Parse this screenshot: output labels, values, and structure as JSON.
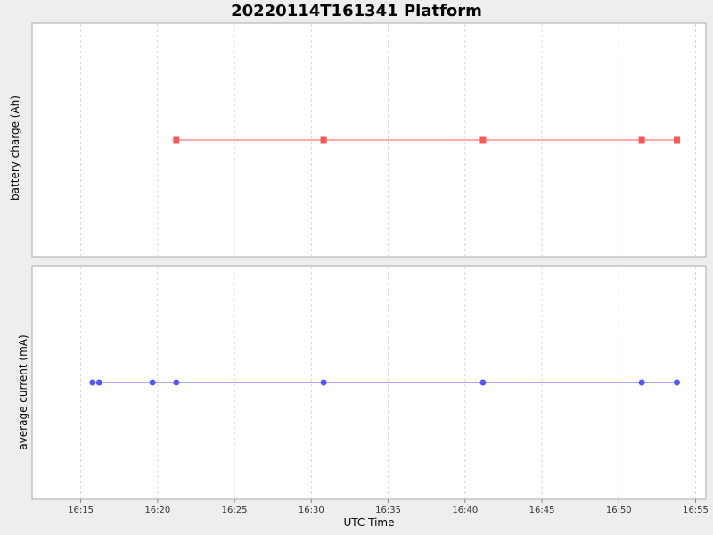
{
  "chart_data": {
    "type": "line",
    "title": "20220114T161341 Platform",
    "xlabel": "UTC Time",
    "x_ticks": [
      "16:15",
      "16:20",
      "16:25",
      "16:30",
      "16:35",
      "16:40",
      "16:45",
      "16:50",
      "16:55"
    ],
    "xlim": [
      "16:11:50",
      "16:55:40"
    ],
    "grid": true,
    "subplots": [
      {
        "ylabel": "battery charge (Ah)",
        "series": [
          {
            "color": "#ff5555",
            "marker": "square",
            "x": [
              "16:21:13",
              "16:30:48",
              "16:41:10",
              "16:51:30",
              "16:53:47"
            ],
            "y": [
              0,
              0,
              0,
              0,
              0
            ]
          }
        ]
      },
      {
        "ylabel": "average current (mA)",
        "series": [
          {
            "color": "#5555ff",
            "marker": "circle",
            "x": [
              "16:15:46",
              "16:16:12",
              "16:19:40",
              "16:21:13",
              "16:30:48",
              "16:41:10",
              "16:51:30",
              "16:53:47"
            ],
            "y": [
              0,
              0,
              0,
              0,
              0,
              0,
              0,
              0
            ]
          }
        ]
      }
    ]
  }
}
